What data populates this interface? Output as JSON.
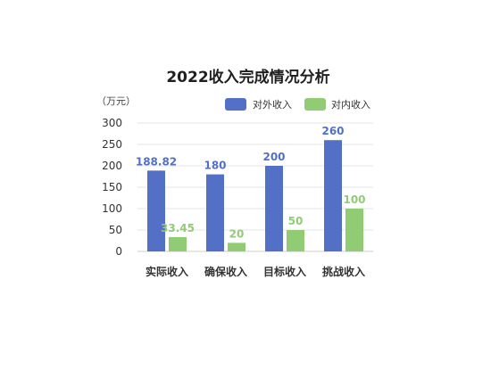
{
  "chart_data": {
    "type": "bar",
    "title": "2022收入完成情况分析",
    "unit": "（万元）",
    "categories": [
      "实际收入",
      "确保收入",
      "目标收入",
      "挑战收入"
    ],
    "series": [
      {
        "name": "对外收入",
        "color": "#5470C6",
        "values": [
          188.82,
          180,
          200,
          260
        ],
        "labels": [
          "188.82",
          "180",
          "200",
          "260"
        ]
      },
      {
        "name": "对内收入",
        "color": "#91CC75",
        "values": [
          33.45,
          20,
          50,
          100
        ],
        "labels": [
          "33.45",
          "20",
          "50",
          "100"
        ]
      }
    ],
    "ylim": [
      0,
      300
    ],
    "yticks": [
      "0",
      "50",
      "100",
      "150",
      "200",
      "250",
      "300"
    ],
    "grid": true,
    "legend_position": "top-right"
  }
}
